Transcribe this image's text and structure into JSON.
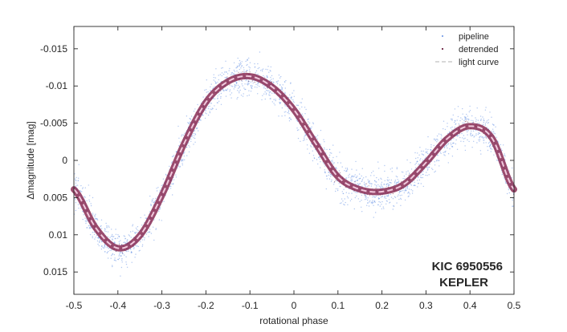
{
  "chart_data": {
    "type": "scatter",
    "title": "",
    "xlabel": "rotational phase",
    "ylabel": "Δmagnitude  [mag]",
    "xlim": [
      -0.5,
      0.5
    ],
    "ylim": [
      -0.018,
      0.018
    ],
    "y_reversed": true,
    "x_ticks": [
      -0.5,
      -0.4,
      -0.3,
      -0.2,
      -0.1,
      0,
      0.1,
      0.2,
      0.3,
      0.4,
      0.5
    ],
    "x_tick_labels": [
      "-0.5",
      "-0.4",
      "-0.3",
      "-0.2",
      "-0.1",
      "0",
      "0.1",
      "0.2",
      "0.3",
      "0.4",
      "0.5"
    ],
    "y_ticks": [
      -0.015,
      -0.01,
      -0.005,
      0,
      0.005,
      0.01,
      0.015
    ],
    "y_tick_labels": [
      "-0.015",
      "-0.01",
      "-0.005",
      "0",
      "0.005",
      "0.01",
      "0.015"
    ],
    "grid": false,
    "legend_position": "top-right",
    "annotation": [
      "KIC 6950556",
      "KEPLER"
    ],
    "series": [
      {
        "name": "pipeline",
        "kind": "points",
        "color": "#7aa0e8",
        "scatter_amplitude": 0.0022
      },
      {
        "name": "detrended",
        "kind": "points",
        "color": "#6a2040",
        "scatter_amplitude": 0.0006
      },
      {
        "name": "light curve",
        "kind": "dashed-line",
        "color": "#f0c8dc",
        "x": [
          -0.5,
          -0.45,
          -0.4,
          -0.35,
          -0.3,
          -0.25,
          -0.2,
          -0.15,
          -0.1,
          -0.05,
          0,
          0.05,
          0.1,
          0.15,
          0.2,
          0.25,
          0.3,
          0.35,
          0.4,
          0.45,
          0.5
        ],
        "y": [
          0.0039,
          0.0091,
          0.0118,
          0.0101,
          0.0047,
          -0.0022,
          -0.0078,
          -0.0106,
          -0.0113,
          -0.0099,
          -0.0068,
          -0.0022,
          0.0022,
          0.0039,
          0.0042,
          0.0032,
          0.0003,
          -0.003,
          -0.0046,
          -0.003,
          0.0039
        ]
      }
    ]
  }
}
